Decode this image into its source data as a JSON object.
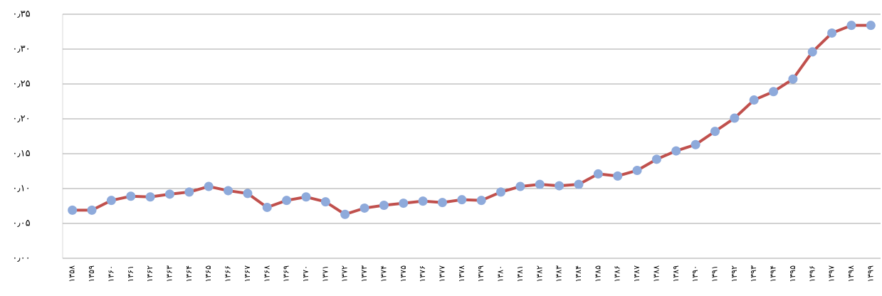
{
  "chart_data": {
    "type": "line",
    "categories": [
      "۱۳۵۸",
      "۱۳۵۹",
      "۱۳۶۰",
      "۱۳۶۱",
      "۱۳۶۲",
      "۱۳۶۳",
      "۱۳۶۴",
      "۱۳۶۵",
      "۱۳۶۶",
      "۱۳۶۷",
      "۱۳۶۸",
      "۱۳۶۹",
      "۱۳۷۰",
      "۱۳۷۱",
      "۱۳۷۲",
      "۱۳۷۳",
      "۱۳۷۴",
      "۱۳۷۵",
      "۱۳۷۶",
      "۱۳۷۷",
      "۱۳۷۸",
      "۱۳۷۹",
      "۱۳۸۰",
      "۱۳۸۱",
      "۱۳۸۲",
      "۱۳۸۳",
      "۱۳۸۴",
      "۱۳۸۵",
      "۱۳۸۶",
      "۱۳۸۷",
      "۱۳۸۸",
      "۱۳۸۹",
      "۱۳۹۰",
      "۱۳۹۱",
      "۱۳۹۲",
      "۱۳۹۳",
      "۱۳۹۴",
      "۱۳۹۵",
      "۱۳۹۶",
      "۱۳۹۷",
      "۱۳۹۸",
      "۱۳۹۹"
    ],
    "values": [
      0.069,
      0.069,
      0.083,
      0.089,
      0.088,
      0.092,
      0.095,
      0.103,
      0.097,
      0.093,
      0.073,
      0.083,
      0.088,
      0.081,
      0.063,
      0.072,
      0.076,
      0.079,
      0.082,
      0.08,
      0.084,
      0.083,
      0.095,
      0.103,
      0.106,
      0.104,
      0.106,
      0.121,
      0.118,
      0.126,
      0.142,
      0.154,
      0.163,
      0.182,
      0.201,
      0.227,
      0.239,
      0.257,
      0.296,
      0.323,
      0.334,
      0.334
    ],
    "color": "#c0504d",
    "marker_color": "#8eaadb",
    "ylim": [
      0,
      0.35
    ],
    "yticks": [
      {
        "value": 0,
        "label": "۰٫۰۰"
      },
      {
        "value": 0.05,
        "label": "۰٫۰۵"
      },
      {
        "value": 0.1,
        "label": "۰٫۱۰"
      },
      {
        "value": 0.15,
        "label": "۰٫۱۵"
      },
      {
        "value": 0.2,
        "label": "۰٫۲۰"
      },
      {
        "value": 0.25,
        "label": "۰٫۲۵"
      },
      {
        "value": 0.3,
        "label": "۰٫۳۰"
      },
      {
        "value": 0.35,
        "label": "۰٫۳۵"
      }
    ],
    "grid": true
  }
}
